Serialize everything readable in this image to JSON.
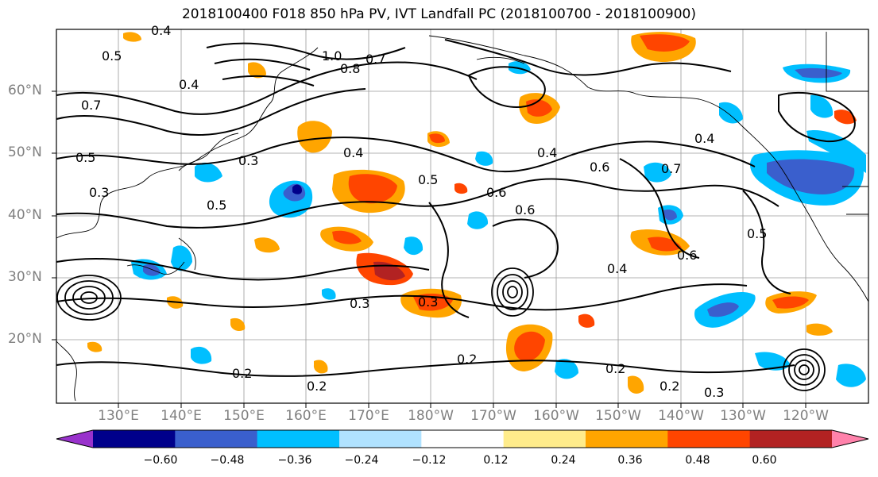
{
  "title": "2018100400 F018 850 hPa PV, IVT Landfall PC (2018100700 - 2018100900)",
  "lat_labels": [
    "60°N",
    "50°N",
    "40°N",
    "30°N",
    "20°N"
  ],
  "lon_labels": [
    "130°E",
    "140°E",
    "150°E",
    "160°E",
    "170°E",
    "180°W",
    "170°W",
    "160°W",
    "150°W",
    "140°W",
    "130°W",
    "120°W"
  ],
  "contour_labels": [
    "0.4",
    "0.5",
    "1.0",
    "0.8",
    "0.7",
    "0.4",
    "0.7",
    "0.5",
    "0.3",
    "0.3",
    "0.4",
    "0.5",
    "0.6",
    "0.4",
    "0.6",
    "0.7",
    "0.5",
    "0.3",
    "0.3",
    "0.6",
    "0.4",
    "0.2",
    "0.2",
    "0.2",
    "0.2",
    "0.3",
    "0.2",
    "0.6",
    "0.5",
    "0.4"
  ],
  "colorbar": {
    "ticks": [
      "−0.60",
      "−0.48",
      "−0.36",
      "−0.24",
      "−0.12",
      "0.12",
      "0.24",
      "0.36",
      "0.48",
      "0.60"
    ],
    "colors": [
      "#9932cc",
      "#00008b",
      "#3a5fcd",
      "#00bfff",
      "#b0e2ff",
      "#ffffff",
      "#ffec8b",
      "#ffa500",
      "#ff4500",
      "#b22222",
      "#ff82ab"
    ]
  }
}
